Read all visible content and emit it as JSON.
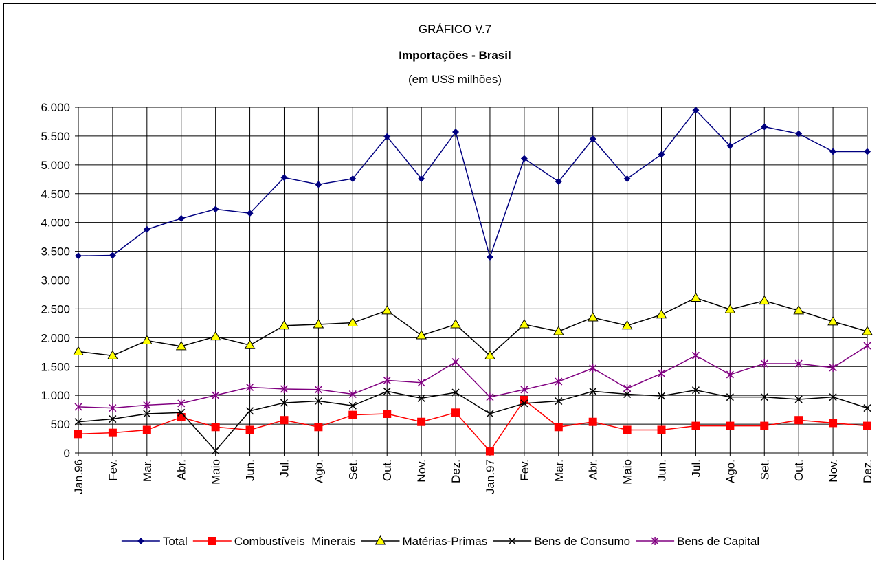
{
  "chart_data": {
    "type": "line",
    "title": [
      "GRÁFICO V.7",
      "Importações - Brasil",
      "(em US$ milhões)"
    ],
    "categories": [
      "Jan.96",
      "Fev.",
      "Mar.",
      "Abr.",
      "Maio",
      "Jun.",
      "Jul.",
      "Ago.",
      "Set.",
      "Out.",
      "Nov.",
      "Dez.",
      "Jan.97",
      "Fev.",
      "Mar.",
      "Abr.",
      "Maio",
      "Jun.",
      "Jul.",
      "Ago.",
      "Set.",
      "Out.",
      "Nov.",
      "Dez."
    ],
    "series": [
      {
        "name": "Total",
        "color": "#000080",
        "marker": "diamond",
        "values": [
          3420,
          3430,
          3880,
          4070,
          4230,
          4160,
          4780,
          4660,
          4760,
          5490,
          4760,
          5570,
          3400,
          5110,
          4710,
          5450,
          4760,
          5180,
          5950,
          5330,
          5660,
          5540,
          5230,
          5230
        ]
      },
      {
        "name": "Combustíveis  Minerais",
        "color": "#ff0000",
        "marker": "square",
        "values": [
          330,
          350,
          400,
          620,
          450,
          400,
          570,
          450,
          660,
          680,
          540,
          700,
          30,
          920,
          450,
          540,
          400,
          400,
          470,
          470,
          470,
          570,
          520,
          470
        ]
      },
      {
        "name": "Matérias-Primas",
        "color": "#000000",
        "marker": "triangle",
        "marker_fill": "#ffff00",
        "values": [
          1760,
          1690,
          1950,
          1850,
          2020,
          1870,
          2210,
          2230,
          2260,
          2470,
          2040,
          2230,
          1690,
          2230,
          2110,
          2350,
          2210,
          2400,
          2690,
          2490,
          2640,
          2470,
          2280,
          2110
        ]
      },
      {
        "name": "Bens de Consumo",
        "color": "#000000",
        "marker": "x",
        "values": [
          540,
          590,
          680,
          700,
          40,
          730,
          870,
          900,
          820,
          1070,
          950,
          1050,
          680,
          860,
          900,
          1070,
          1020,
          990,
          1090,
          970,
          970,
          930,
          970,
          780
        ]
      },
      {
        "name": "Bens de Capital",
        "color": "#800080",
        "marker": "star",
        "values": [
          800,
          780,
          830,
          860,
          1000,
          1140,
          1110,
          1100,
          1020,
          1260,
          1220,
          1580,
          970,
          1100,
          1240,
          1470,
          1120,
          1380,
          1690,
          1360,
          1550,
          1550,
          1480,
          1860
        ]
      }
    ],
    "ylim": [
      0,
      6000
    ],
    "yticks": [
      0,
      500,
      {
        "value": 1000,
        "label": "1.000"
      },
      {
        "value": 1500,
        "label": "1.500"
      },
      {
        "value": 2000,
        "label": "2.000"
      },
      {
        "value": 2500,
        "label": "2.500"
      },
      {
        "value": 3000,
        "label": "3.000"
      },
      {
        "value": 3500,
        "label": "3.500"
      },
      {
        "value": 4000,
        "label": "4.000"
      },
      {
        "value": 4500,
        "label": "4.500"
      },
      {
        "value": 5000,
        "label": "5.000"
      },
      {
        "value": 5500,
        "label": "5.500"
      },
      {
        "value": 6000,
        "label": "6.000"
      }
    ],
    "grid": true,
    "legend": "bottom"
  }
}
